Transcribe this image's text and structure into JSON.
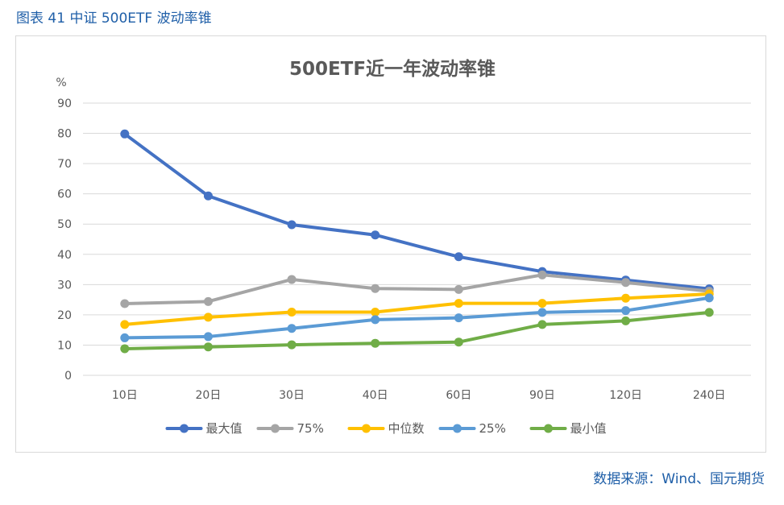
{
  "figure_caption": "图表 41 中证 500ETF 波动率锥",
  "source": "数据来源：Wind、国元期货",
  "chart_data": {
    "type": "line",
    "title": "500ETF近一年波动率锥",
    "ylabel": "%",
    "xlabel": "",
    "ylim": [
      0,
      90
    ],
    "yticks": [
      0,
      10,
      20,
      30,
      40,
      50,
      60,
      70,
      80,
      90
    ],
    "grid": true,
    "legend": "bottom",
    "categories": [
      "10日",
      "20日",
      "30日",
      "40日",
      "60日",
      "90日",
      "120日",
      "240日"
    ],
    "series": [
      {
        "name": "最大值",
        "color": "#4472c4",
        "values": [
          79.8,
          59.3,
          49.8,
          46.4,
          39.2,
          34.3,
          31.5,
          28.6
        ]
      },
      {
        "name": "75%",
        "color": "#a5a5a5",
        "values": [
          23.7,
          24.4,
          31.7,
          28.7,
          28.4,
          33.2,
          30.7,
          27.8
        ]
      },
      {
        "name": "中位数",
        "color": "#ffc000",
        "values": [
          16.8,
          19.2,
          20.9,
          20.9,
          23.8,
          23.8,
          25.5,
          26.9
        ]
      },
      {
        "name": "25%",
        "color": "#5b9bd5",
        "values": [
          12.4,
          12.8,
          15.5,
          18.4,
          19.0,
          20.8,
          21.4,
          25.6
        ]
      },
      {
        "name": "最小值",
        "color": "#70ad47",
        "values": [
          8.8,
          9.4,
          10.1,
          10.6,
          11.0,
          16.8,
          18.0,
          20.8
        ]
      }
    ]
  }
}
